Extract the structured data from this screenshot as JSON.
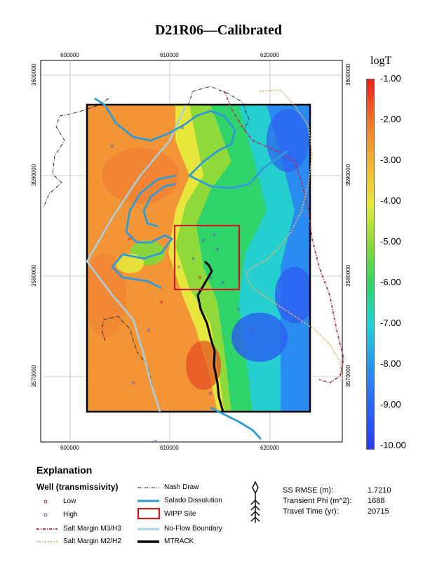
{
  "title": "D21R06—Calibrated",
  "x_ticks": [
    "600000",
    "610000",
    "620000"
  ],
  "y_ticks": [
    "3600000",
    "3590000",
    "3580000",
    "3570000"
  ],
  "colorbar": {
    "title": "logT",
    "labels": [
      "-1.00",
      "-2.00",
      "-3.00",
      "-4.00",
      "-5.00",
      "-6.00",
      "-7.00",
      "-8.00",
      "-9.00",
      "-10.00"
    ]
  },
  "legend": {
    "explanation": "Explanation",
    "well_heading": "Well (transmissivity)",
    "low": "Low",
    "high": "High",
    "salt_m3": "Salt Margin M3/H3",
    "salt_m2": "Salt Margin M2/H2",
    "nash_draw": "Nash Draw",
    "salado": "Salado Dissolution",
    "wipp": "WIPP Site",
    "no_flow": "No-Flow Boundary",
    "mtrack": "MTRACK"
  },
  "stats": [
    {
      "label": "SS RMSE (m):",
      "value": "1.7210"
    },
    {
      "label": "Transient Phi (m^2):",
      "value": "1688"
    },
    {
      "label": "Travel Time (yr):",
      "value": "20715"
    }
  ],
  "colors": {
    "salado": "#2e9ad6",
    "wipp": "#c81e1e",
    "salt_m3": "#b0305a",
    "salt_m2": "#f0b070",
    "no_flow": "#a8d0e0",
    "mtrack": "#000000"
  }
}
